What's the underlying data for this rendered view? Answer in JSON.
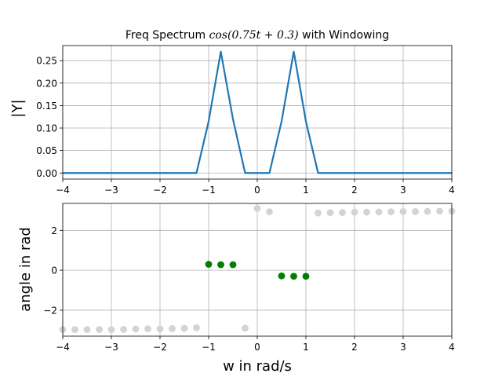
{
  "chart_data": [
    {
      "type": "line",
      "title": "Freq Spectrum cos(0.75t + 0.3) with Windowing",
      "title_parts": {
        "prefix": "Freq Spectrum ",
        "math": "cos(0.75t + 0.3)",
        "suffix": " with Windowing"
      },
      "xlabel": "",
      "ylabel": "|Y|",
      "xlim": [
        -4,
        4
      ],
      "ylim": [
        -0.0135,
        0.2835
      ],
      "xticks": [
        -4,
        -3,
        -2,
        -1,
        0,
        1,
        2,
        3,
        4
      ],
      "xtick_labels": [
        "−4",
        "−3",
        "−2",
        "−1",
        "0",
        "1",
        "2",
        "3",
        "4"
      ],
      "yticks": [
        0.0,
        0.05,
        0.1,
        0.15,
        0.2,
        0.25
      ],
      "ytick_labels": [
        "0.00",
        "0.05",
        "0.10",
        "0.15",
        "0.20",
        "0.25"
      ],
      "grid": true,
      "series": [
        {
          "color": "#1f77b4",
          "x": [
            -4,
            -3.75,
            -3.5,
            -3.25,
            -3,
            -2.75,
            -2.5,
            -2.25,
            -2,
            -1.75,
            -1.5,
            -1.25,
            -1,
            -0.75,
            -0.5,
            -0.25,
            0,
            0.25,
            0.5,
            0.75,
            1,
            1.25,
            1.5,
            1.75,
            2,
            2.25,
            2.5,
            2.75,
            3,
            3.25,
            3.5,
            3.75,
            4
          ],
          "y": [
            0,
            0,
            0,
            0,
            0,
            0,
            0,
            0,
            0,
            0,
            0,
            0,
            0.115,
            0.27,
            0.12,
            0,
            0,
            0,
            0.115,
            0.27,
            0.115,
            0,
            0,
            0,
            0,
            0,
            0,
            0,
            0,
            0,
            0,
            0,
            0
          ]
        }
      ]
    },
    {
      "type": "scatter",
      "xlabel": "w in rad/s",
      "ylabel": "angle in rad",
      "xlim": [
        -4,
        4
      ],
      "ylim": [
        -3.3,
        3.35
      ],
      "xticks": [
        -4,
        -3,
        -2,
        -1,
        0,
        1,
        2,
        3,
        4
      ],
      "xtick_labels": [
        "−4",
        "−3",
        "−2",
        "−1",
        "0",
        "1",
        "2",
        "3",
        "4"
      ],
      "yticks": [
        -2,
        0,
        2
      ],
      "ytick_labels": [
        "−2",
        "0",
        "2"
      ],
      "grid": true,
      "series": [
        {
          "color": "#d3d3d3",
          "x": [
            -4,
            -3.75,
            -3.5,
            -3.25,
            -3,
            -2.75,
            -2.5,
            -2.25,
            -2,
            -1.75,
            -1.5,
            -1.25,
            -0.25,
            0,
            0.25,
            1.25,
            1.5,
            1.75,
            2,
            2.25,
            2.5,
            2.75,
            3,
            3.25,
            3.5,
            3.75,
            4
          ],
          "y": [
            -2.97,
            -2.97,
            -2.97,
            -2.97,
            -2.97,
            -2.96,
            -2.94,
            -2.93,
            -2.93,
            -2.92,
            -2.91,
            -2.88,
            -2.9,
            3.1,
            2.93,
            2.87,
            2.89,
            2.89,
            2.91,
            2.91,
            2.92,
            2.93,
            2.94,
            2.94,
            2.95,
            2.96,
            2.96
          ]
        },
        {
          "color": "#008000",
          "x": [
            -1,
            -0.75,
            -0.5,
            0.5,
            0.75,
            1
          ],
          "y": [
            0.3,
            0.28,
            0.28,
            -0.28,
            -0.3,
            -0.3
          ]
        }
      ]
    }
  ]
}
